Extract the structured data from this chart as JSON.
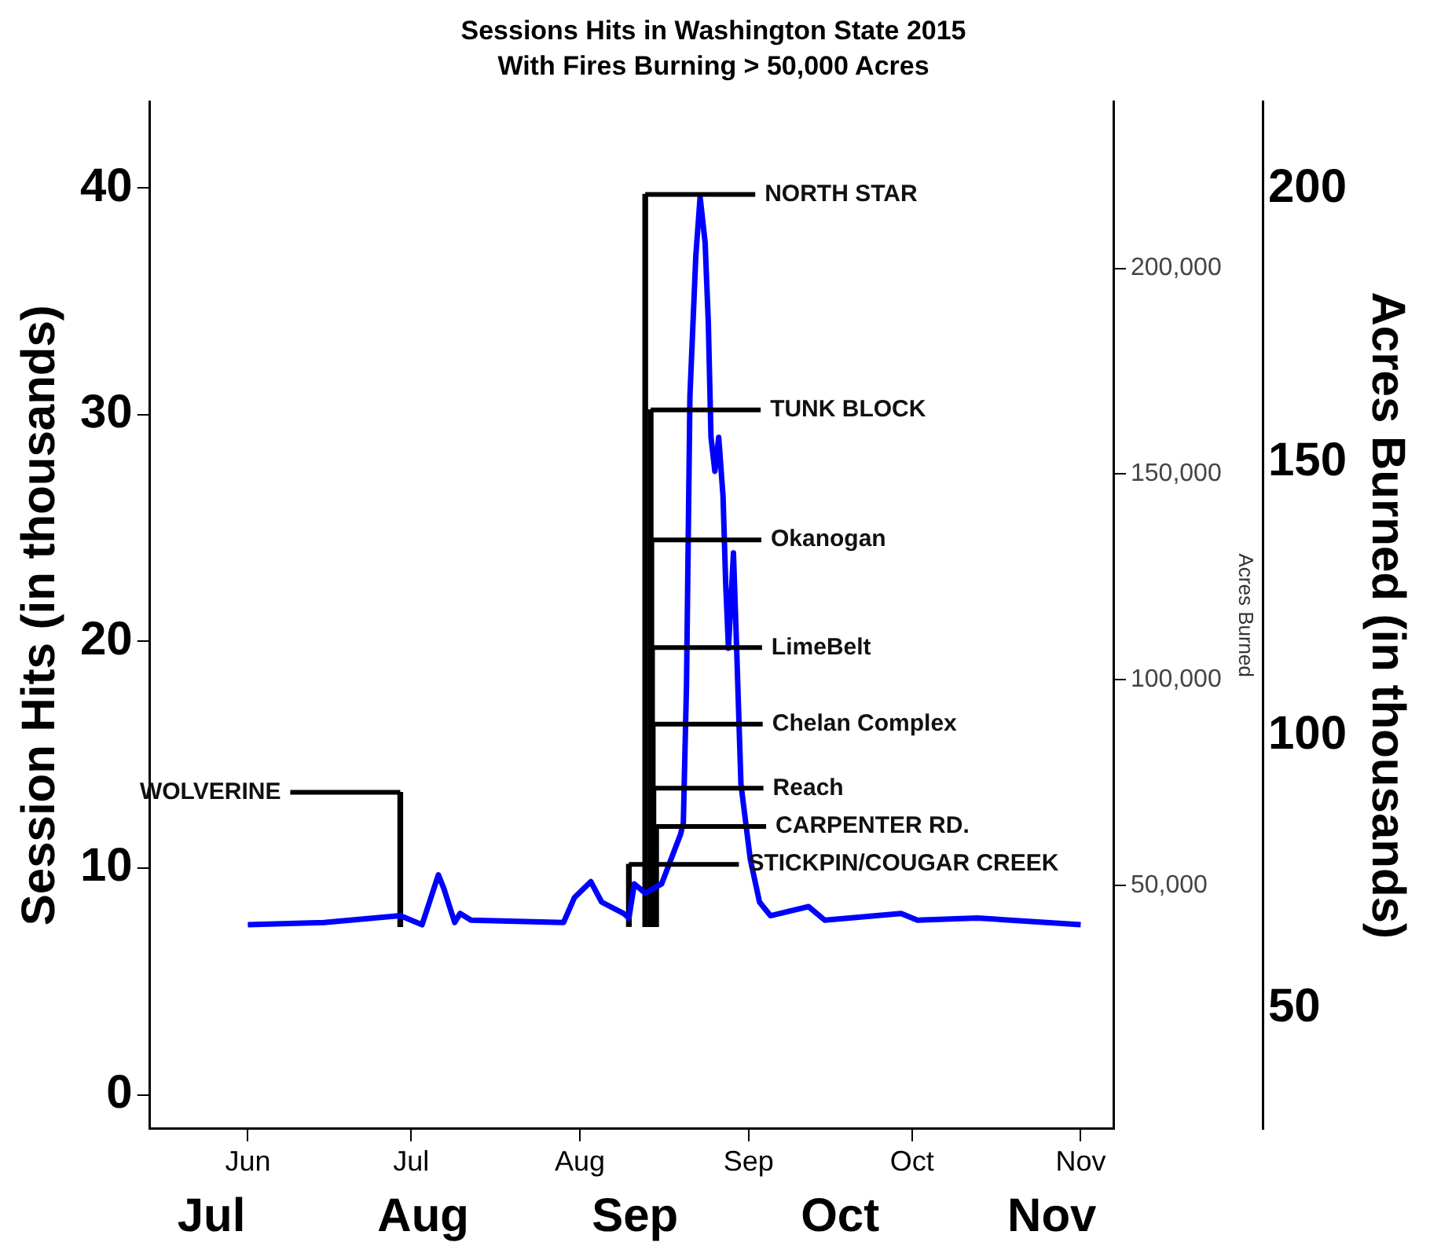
{
  "chart_data": {
    "type": "line",
    "title": "Sessions Hits in Washington State 2015",
    "subtitle": "With Fires Burning > 50,000 Acres",
    "ylabel": "Session Hits (in thousands)",
    "y2label": "Acres Burned",
    "y3label": "Acres Burned (in thousands)",
    "xlim": [
      "2015-05-14",
      "2015-11-07"
    ],
    "xticks": [
      {
        "value": "2015-06-01",
        "label": "Jun"
      },
      {
        "value": "2015-07-01",
        "label": "Jul"
      },
      {
        "value": "2015-08-01",
        "label": "Aug"
      },
      {
        "value": "2015-09-01",
        "label": "Sep"
      },
      {
        "value": "2015-10-01",
        "label": "Oct"
      },
      {
        "value": "2015-11-01",
        "label": "Nov"
      }
    ],
    "x2lim": [
      "2015-06-22",
      "2015-11-10"
    ],
    "x2ticks": [
      {
        "value": "2015-07-01",
        "label": "Jul"
      },
      {
        "value": "2015-08-01",
        "label": "Aug"
      },
      {
        "value": "2015-09-01",
        "label": "Sep"
      },
      {
        "value": "2015-10-01",
        "label": "Oct"
      },
      {
        "value": "2015-11-01",
        "label": "Nov"
      }
    ],
    "ylim": [
      -1.5,
      43.8
    ],
    "yticks": [
      0,
      10,
      20,
      30,
      40
    ],
    "y2lim": [
      -9200,
      240500
    ],
    "y2ticks": [
      {
        "value": 50000,
        "label": "50,000"
      },
      {
        "value": 100000,
        "label": "100,000"
      },
      {
        "value": 150000,
        "label": "150,000"
      },
      {
        "value": 200000,
        "label": "200,000"
      }
    ],
    "y3lim": [
      28,
      216
    ],
    "y3ticks": [
      50,
      100,
      150,
      200
    ],
    "series": [
      {
        "color": "#0000ff",
        "x": [
          "2015-06-01",
          "2015-06-15",
          "2015-06-29",
          "2015-07-03",
          "2015-07-06",
          "2015-07-07",
          "2015-07-09",
          "2015-07-10",
          "2015-07-12",
          "2015-07-29",
          "2015-07-31",
          "2015-08-03",
          "2015-08-05",
          "2015-08-09",
          "2015-08-10",
          "2015-08-11",
          "2015-08-13",
          "2015-08-16",
          "2015-08-19T12:00",
          "2015-08-20",
          "2015-08-20T14:00",
          "2015-08-21T05:00",
          "2015-08-22T07:00",
          "2015-08-23T02:00",
          "2015-08-24",
          "2015-08-24T14:00",
          "2015-08-25T02:00",
          "2015-08-25T19:00",
          "2015-08-26T12:00",
          "2015-08-27T07:00",
          "2015-08-27T19:00",
          "2015-08-28T07:00",
          "2015-08-29T05:00",
          "2015-08-29T19:00",
          "2015-08-30T14:00",
          "2015-09-01T07:00",
          "2015-09-03",
          "2015-09-05",
          "2015-09-12",
          "2015-09-15",
          "2015-09-29",
          "2015-10-02",
          "2015-10-13",
          "2015-11-01"
        ],
        "values": [
          7.5,
          7.6,
          7.9,
          7.5,
          9.7,
          9.1,
          7.6,
          8.0,
          7.7,
          7.6,
          8.7,
          9.4,
          8.5,
          8.0,
          7.8,
          9.3,
          8.9,
          9.3,
          11.5,
          12.0,
          18.1,
          30.8,
          37.0,
          39.6,
          37.6,
          34.1,
          29.0,
          27.5,
          29.0,
          26.4,
          22.5,
          19.7,
          23.9,
          19.7,
          13.7,
          10.4,
          8.5,
          7.9,
          8.3,
          7.7,
          8.0,
          7.7,
          7.8,
          7.5
        ]
      },
      {
        "type": "bar",
        "axis": "y2",
        "color": "#000000",
        "x": [
          "2015-06-29",
          "2015-08-10",
          "2015-08-13",
          "2015-08-14T00:00",
          "2015-08-14T03:00",
          "2015-08-14T06:00",
          "2015-08-14T09:00",
          "2015-08-14T12:00",
          "2015-08-15"
        ],
        "base": [
          40000,
          40000,
          40000,
          40000,
          40000,
          40000,
          40000,
          40000,
          40000
        ],
        "values": [
          32600,
          15100,
          178000,
          125600,
          94000,
          67800,
          49200,
          33600,
          24300
        ],
        "value_labels": [
          "WOLVERINE",
          "STICKPIN/COUGAR CREEK",
          "NORTH STAR",
          "TUNK BLOCK",
          "Okanogan",
          "LimeBelt",
          "Chelan Complex",
          "Reach",
          "CARPENTER RD."
        ]
      }
    ]
  }
}
